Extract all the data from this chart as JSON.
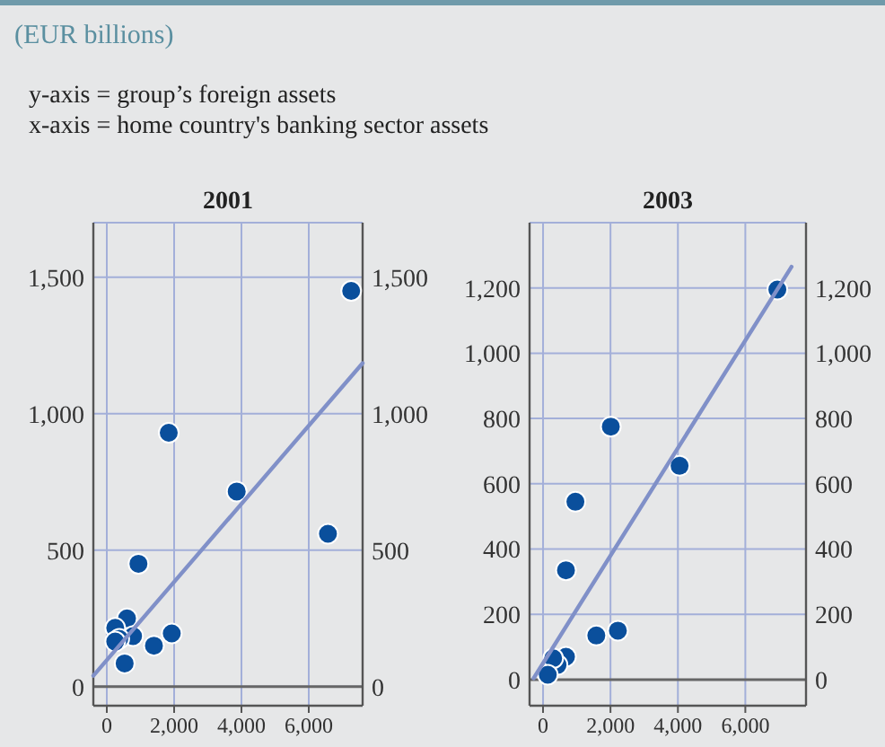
{
  "chart_data": [
    {
      "type": "scatter",
      "title": "2001",
      "subtitle": "(EUR billions)",
      "annotations": [
        "y-axis = group’s foreign assets",
        "x-axis = home country's banking sector assets"
      ],
      "xlim": [
        -400,
        7600
      ],
      "xticks": [
        {
          "value": 0,
          "label": "0"
        },
        {
          "value": 2000,
          "label": "2,000"
        },
        {
          "value": 4000,
          "label": "4,000"
        },
        {
          "value": 6000,
          "label": "6,000"
        }
      ],
      "ylim": [
        -70,
        1700
      ],
      "yticks": [
        {
          "value": 0,
          "label": "0"
        },
        {
          "value": 500,
          "label": "500"
        },
        {
          "value": 1000,
          "label": "1,000"
        },
        {
          "value": 1500,
          "label": "1,500"
        }
      ],
      "y2lim": [
        -70,
        1700
      ],
      "y2ticks": [
        {
          "value": 0,
          "label": "0"
        },
        {
          "value": 500,
          "label": "500"
        },
        {
          "value": 1000,
          "label": "1,000"
        },
        {
          "value": 1500,
          "label": "1,500"
        }
      ],
      "grid": true,
      "series": [
        {
          "marker": "circle",
          "color": "#0a4f9c",
          "x": [
            7260,
            1840,
            3860,
            6570,
            940,
            600,
            250,
            780,
            370,
            250,
            1930,
            1400,
            530
          ],
          "values": [
            1450,
            930,
            715,
            560,
            450,
            250,
            215,
            185,
            175,
            165,
            195,
            150,
            85
          ]
        },
        {
          "type": "line",
          "color": "#8090c8",
          "x": [
            -400,
            7600
          ],
          "values": [
            40,
            1185
          ]
        }
      ]
    },
    {
      "type": "scatter",
      "title": "2003",
      "xlim": [
        -400,
        7800
      ],
      "xticks": [
        {
          "value": 0,
          "label": "0"
        },
        {
          "value": 2000,
          "label": "2,000"
        },
        {
          "value": 4000,
          "label": "4,000"
        },
        {
          "value": 6000,
          "label": "6,000"
        }
      ],
      "ylim": [
        -80,
        1400
      ],
      "yticks": [
        {
          "value": 0,
          "label": "0"
        },
        {
          "value": 200,
          "label": "200"
        },
        {
          "value": 400,
          "label": "400"
        },
        {
          "value": 600,
          "label": "600"
        },
        {
          "value": 800,
          "label": "800"
        },
        {
          "value": 1000,
          "label": "1,000"
        },
        {
          "value": 1200,
          "label": "1,200"
        }
      ],
      "y2lim": [
        -80,
        1400
      ],
      "y2ticks": [
        {
          "value": 0,
          "label": "0"
        },
        {
          "value": 200,
          "label": "200"
        },
        {
          "value": 400,
          "label": "400"
        },
        {
          "value": 600,
          "label": "600"
        },
        {
          "value": 800,
          "label": "800"
        },
        {
          "value": 1000,
          "label": "1,000"
        },
        {
          "value": 1200,
          "label": "1,200"
        }
      ],
      "grid": true,
      "series": [
        {
          "marker": "circle",
          "color": "#0a4f9c",
          "x": [
            6950,
            2010,
            4050,
            960,
            680,
            2220,
            1580,
            680,
            430,
            300,
            140
          ],
          "values": [
            1195,
            775,
            655,
            545,
            335,
            150,
            135,
            70,
            45,
            65,
            15
          ]
        },
        {
          "type": "line",
          "color": "#8090c8",
          "x": [
            -280,
            7370
          ],
          "values": [
            4,
            1265
          ]
        }
      ]
    }
  ]
}
